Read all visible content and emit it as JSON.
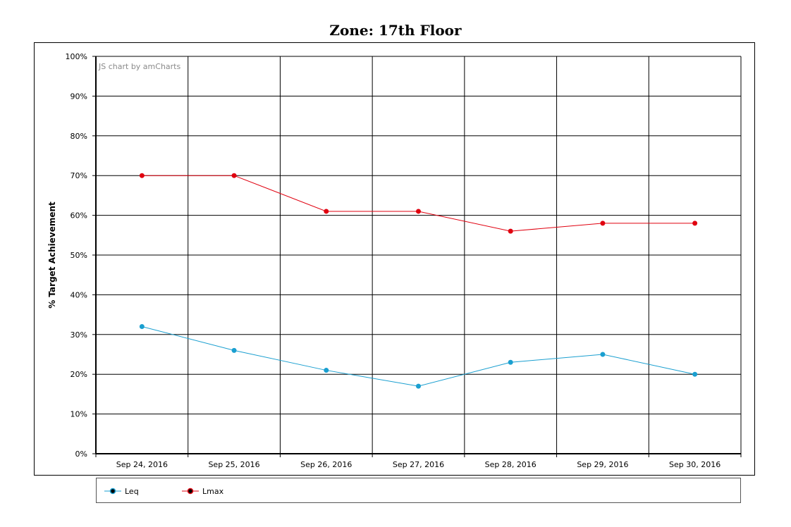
{
  "chart_data": {
    "type": "line",
    "title": "Zone: 17th Floor",
    "ylabel": "% Target Achievement",
    "xlabel": "",
    "categories": [
      "Sep 24, 2016",
      "Sep 25, 2016",
      "Sep 26, 2016",
      "Sep 27, 2016",
      "Sep 28, 2016",
      "Sep 29, 2016",
      "Sep 30, 2016"
    ],
    "ylim": [
      0,
      100
    ],
    "yticks": [
      "0%",
      "10%",
      "20%",
      "30%",
      "40%",
      "50%",
      "60%",
      "70%",
      "80%",
      "90%",
      "100%"
    ],
    "grid": true,
    "legend_position": "bottom",
    "watermark": "JS chart by amCharts",
    "series": [
      {
        "name": "Leq",
        "values": [
          32,
          26,
          21,
          17,
          23,
          25,
          20
        ],
        "color": "#1a9fd0"
      },
      {
        "name": "Lmax",
        "values": [
          70,
          70,
          61,
          61,
          56,
          58,
          58
        ],
        "color": "#e0000f"
      }
    ]
  }
}
